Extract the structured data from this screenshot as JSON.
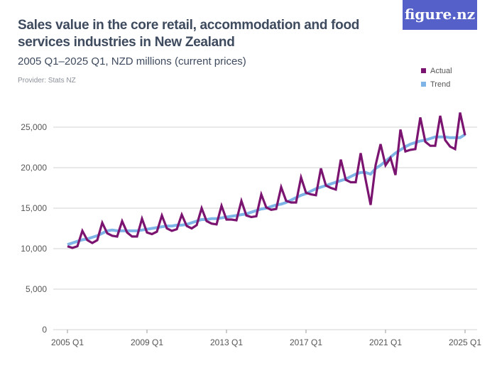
{
  "header": {
    "title": "Sales value in the core retail, accommodation and food services industries in New Zealand",
    "subtitle": "2005 Q1–2025 Q1, NZD millions (current prices)",
    "provider": "Provider: Stats NZ",
    "logo": "figure.nz"
  },
  "chart_data": {
    "type": "line",
    "title": "Sales value in the core retail, accommodation and food services industries in New Zealand",
    "subtitle": "2005 Q1–2025 Q1, NZD millions (current prices)",
    "x_start": "2005 Q1",
    "x_end": "2025 Q1",
    "x_frequency": "quarterly",
    "ylim": [
      0,
      26800
    ],
    "y_ticks": [
      0,
      5000,
      10000,
      15000,
      20000,
      25000
    ],
    "y_tick_labels": [
      "0",
      "5,000",
      "10,000",
      "15,000",
      "20,000",
      "25,000"
    ],
    "x_tick_labels": [
      "2005 Q1",
      "2009 Q1",
      "2013 Q1",
      "2017 Q1",
      "2021 Q1",
      "2025 Q1"
    ],
    "grid": true,
    "legend_position": "top-right",
    "series": [
      {
        "name": "Actual",
        "color": "#7b1470",
        "values": [
          10300,
          10100,
          10300,
          12200,
          11050,
          10700,
          11050,
          13200,
          11900,
          11600,
          11500,
          13400,
          12000,
          11500,
          11500,
          13700,
          12000,
          11800,
          12100,
          14100,
          12500,
          12200,
          12400,
          14200,
          12800,
          12500,
          12900,
          15000,
          13400,
          13100,
          13000,
          15300,
          13600,
          13600,
          13500,
          15900,
          14100,
          13900,
          14000,
          16700,
          15100,
          14800,
          14900,
          17600,
          15900,
          15700,
          15700,
          18800,
          16900,
          16700,
          16600,
          19900,
          17800,
          17500,
          17300,
          21000,
          18500,
          18200,
          18200,
          21800,
          18500,
          15400,
          20300,
          22900,
          20300,
          21200,
          19100,
          24700,
          22000,
          22200,
          22300,
          26200,
          23200,
          22700,
          22700,
          26400,
          23400,
          22600,
          22300,
          26800,
          24000
        ]
      },
      {
        "name": "Trend",
        "color": "#7fb5e6",
        "values": [
          10500,
          10700,
          10900,
          11100,
          11200,
          11400,
          11600,
          11900,
          12200,
          12300,
          12200,
          12200,
          12200,
          12200,
          12200,
          12300,
          12400,
          12500,
          12600,
          12700,
          12800,
          12800,
          12900,
          12900,
          13000,
          13200,
          13400,
          13600,
          13600,
          13700,
          13700,
          13800,
          13900,
          14000,
          14100,
          14200,
          14300,
          14500,
          14700,
          14900,
          15000,
          15200,
          15400,
          15500,
          15700,
          16000,
          16300,
          16600,
          16800,
          17100,
          17400,
          17600,
          17800,
          18000,
          18200,
          18400,
          18600,
          18900,
          19200,
          19400,
          19400,
          19200,
          19900,
          20300,
          20800,
          21300,
          21800,
          22200,
          22600,
          22900,
          23100,
          23300,
          23400,
          23600,
          23800,
          23800,
          23800,
          23700,
          23700,
          23700,
          24100
        ]
      }
    ]
  }
}
